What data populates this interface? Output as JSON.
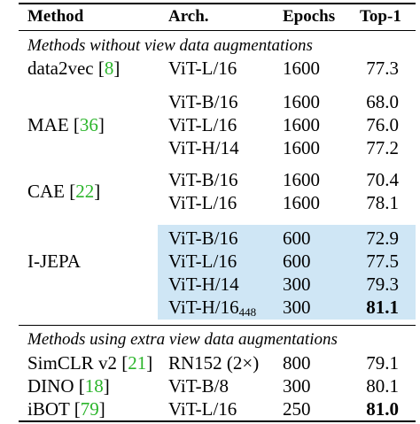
{
  "header": {
    "method": "Method",
    "arch": "Arch.",
    "epochs": "Epochs",
    "top1": "Top-1"
  },
  "sections": [
    {
      "title": "Methods without view data augmentations",
      "groups": [
        {
          "method": "data2vec",
          "cite": "8",
          "rows": [
            {
              "arch": "ViT-L/16",
              "epochs": "1600",
              "top1": "77.3"
            }
          ]
        },
        {
          "method": "MAE",
          "cite": "36",
          "rows": [
            {
              "arch": "ViT-B/16",
              "epochs": "1600",
              "top1": "68.0"
            },
            {
              "arch": "ViT-L/16",
              "epochs": "1600",
              "top1": "76.0"
            },
            {
              "arch": "ViT-H/14",
              "epochs": "1600",
              "top1": "77.2"
            }
          ]
        },
        {
          "method": "CAE",
          "cite": "22",
          "rows": [
            {
              "arch": "ViT-B/16",
              "epochs": "1600",
              "top1": "70.4"
            },
            {
              "arch": "ViT-L/16",
              "epochs": "1600",
              "top1": "78.1"
            }
          ]
        },
        {
          "method": "I-JEPA",
          "cite": "",
          "highlight_color": "#cfe6f5",
          "rows": [
            {
              "arch": "ViT-B/16",
              "epochs": "600",
              "top1": "72.9"
            },
            {
              "arch": "ViT-L/16",
              "epochs": "600",
              "top1": "77.5"
            },
            {
              "arch": "ViT-H/14",
              "epochs": "300",
              "top1": "79.3"
            },
            {
              "arch": "ViT-H/16",
              "arch_sub": "448",
              "epochs": "300",
              "top1": "81.1",
              "bold": true
            }
          ]
        }
      ]
    },
    {
      "title": "Methods using extra view data augmentations",
      "groups": [
        {
          "method": "SimCLR v2",
          "cite": "21",
          "rows": [
            {
              "arch": "RN152 (2×)",
              "epochs": "800",
              "top1": "79.1"
            }
          ]
        },
        {
          "method": "DINO",
          "cite": "18",
          "rows": [
            {
              "arch": "ViT-B/8",
              "epochs": "300",
              "top1": "80.1"
            }
          ]
        },
        {
          "method": "iBOT",
          "cite": "79",
          "rows": [
            {
              "arch": "ViT-L/16",
              "epochs": "250",
              "top1": "81.0",
              "bold": true
            }
          ]
        }
      ]
    }
  ],
  "cite_color": "#2bb52b"
}
